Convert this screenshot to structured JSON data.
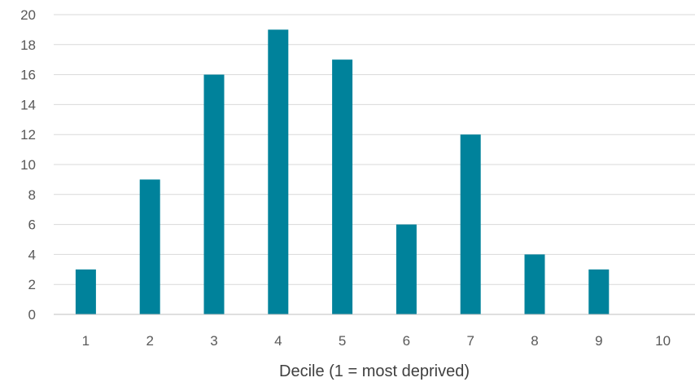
{
  "chart_data": {
    "type": "bar",
    "categories": [
      "1",
      "2",
      "3",
      "4",
      "5",
      "6",
      "7",
      "8",
      "9",
      "10"
    ],
    "values": [
      3,
      9,
      16,
      19,
      17,
      6,
      12,
      4,
      3,
      0
    ],
    "title": "",
    "xlabel": "Decile (1 = most deprived)",
    "ylabel": "",
    "ylim": [
      0,
      20
    ],
    "yticks": [
      0,
      2,
      4,
      6,
      8,
      10,
      12,
      14,
      16,
      18,
      20
    ],
    "grid": true,
    "legend": "none",
    "bar_color": "#00829b"
  }
}
